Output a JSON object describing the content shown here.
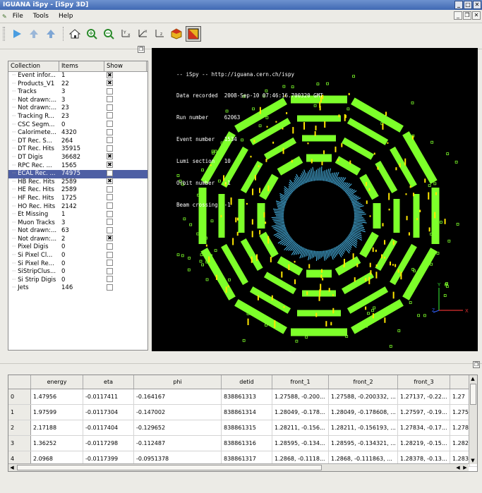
{
  "window": {
    "title": "IGUANA iSpy - [iSpy 3D]",
    "controls": [
      "minimize-icon",
      "maximize-icon",
      "close-icon"
    ]
  },
  "menu": [
    "File",
    "Tools",
    "Help"
  ],
  "toolbar_icons": [
    "play-icon",
    "previous-event-icon",
    "next-event-icon",
    "home-view-icon",
    "zoom-in-icon",
    "zoom-out-icon",
    "axis-yx-icon",
    "axis-xz-icon",
    "axis-yz-icon",
    "cube-view-icon",
    "toggle-display-icon"
  ],
  "tree": {
    "headers": [
      "Collection",
      "Items",
      "Show"
    ],
    "rows": [
      {
        "name": "Event infor...",
        "items": "1",
        "show": true
      },
      {
        "name": "Products_V1",
        "items": "22",
        "show": true
      },
      {
        "name": "Tracks",
        "items": "3",
        "show": false
      },
      {
        "name": "Not drawn:...",
        "items": "3",
        "show": false
      },
      {
        "name": "Not drawn:...",
        "items": "23",
        "show": false
      },
      {
        "name": "Tracking R...",
        "items": "23",
        "show": false
      },
      {
        "name": "CSC Segm...",
        "items": "0",
        "show": false
      },
      {
        "name": "Calorimete...",
        "items": "4320",
        "show": false
      },
      {
        "name": "DT Rec. S...",
        "items": "264",
        "show": false
      },
      {
        "name": "DT Rec. Hits",
        "items": "35915",
        "show": false
      },
      {
        "name": "DT Digis",
        "items": "36682",
        "show": true
      },
      {
        "name": "RPC Rec. ...",
        "items": "1565",
        "show": true
      },
      {
        "name": "ECAL Rec. ...",
        "items": "74975",
        "show": false,
        "selected": true
      },
      {
        "name": "HB Rec. Hits",
        "items": "2589",
        "show": true
      },
      {
        "name": "HE Rec. Hits",
        "items": "2589",
        "show": false
      },
      {
        "name": "HF Rec. Hits",
        "items": "1725",
        "show": false
      },
      {
        "name": "HO Rec. Hits",
        "items": "2142",
        "show": false
      },
      {
        "name": "Et Missing",
        "items": "1",
        "show": false
      },
      {
        "name": "Muon Tracks",
        "items": "3",
        "show": false
      },
      {
        "name": "Not drawn:...",
        "items": "63",
        "show": false
      },
      {
        "name": "Not drawn:...",
        "items": "2",
        "show": true
      },
      {
        "name": "Pixel Digis",
        "items": "0",
        "show": false
      },
      {
        "name": "Si Pixel Cl...",
        "items": "0",
        "show": false
      },
      {
        "name": "Si Pixel Re...",
        "items": "0",
        "show": false
      },
      {
        "name": "SiStripClus...",
        "items": "0",
        "show": false
      },
      {
        "name": "Si Strip Digis",
        "items": "0",
        "show": false
      },
      {
        "name": "Jets",
        "items": "146",
        "show": false
      }
    ]
  },
  "overlay": {
    "lines": [
      "-- iSpy -- http://iguana.cern.ch/ispy",
      "Data recorded  2008-Sep-10 07:46:16.700320 GMT",
      "Run number     62063",
      "Event number   1534",
      "Lumi section   10",
      "Orbit number   -1",
      "Beam crossing  -1"
    ],
    "axes": {
      "y": "Y",
      "z": "Z",
      "x": "X"
    },
    "colors": {
      "muon": "#7dff2a",
      "hits": "#ffe600",
      "ecal": "#49b6e8",
      "background": "#000000"
    }
  },
  "table": {
    "headers": [
      "",
      "energy",
      "eta",
      "phi",
      "detid",
      "front_1",
      "front_2",
      "front_3",
      ""
    ],
    "rows": [
      [
        "0",
        "1.47956",
        "-0.0117411",
        "-0.164167",
        "838861313",
        "1.27588, -0.200...",
        "1.27588, -0.200332, ...",
        "1.27137, -0.22...",
        "1.27"
      ],
      [
        "1",
        "1.97599",
        "-0.0117304",
        "-0.147002",
        "838861314",
        "1.28049, -0.178...",
        "1.28049, -0.178608, ...",
        "1.27597, -0.19...",
        "1.275"
      ],
      [
        "2",
        "2.17188",
        "-0.0117404",
        "-0.129652",
        "838861315",
        "1.28211, -0.156...",
        "1.28211, -0.156193, ...",
        "1.27834, -0.17...",
        "1.278"
      ],
      [
        "3",
        "1.36252",
        "-0.0117298",
        "-0.112487",
        "838861316",
        "1.28595, -0.134...",
        "1.28595, -0.134321, ...",
        "1.28219, -0.15...",
        "1.282"
      ],
      [
        "4",
        "2.0968",
        "-0.0117399",
        "-0.0951378",
        "838861317",
        "1.2868, -0.1118...",
        "1.2868, -0.111863, ...",
        "1.28378, -0.13...",
        "1.283"
      ]
    ]
  }
}
